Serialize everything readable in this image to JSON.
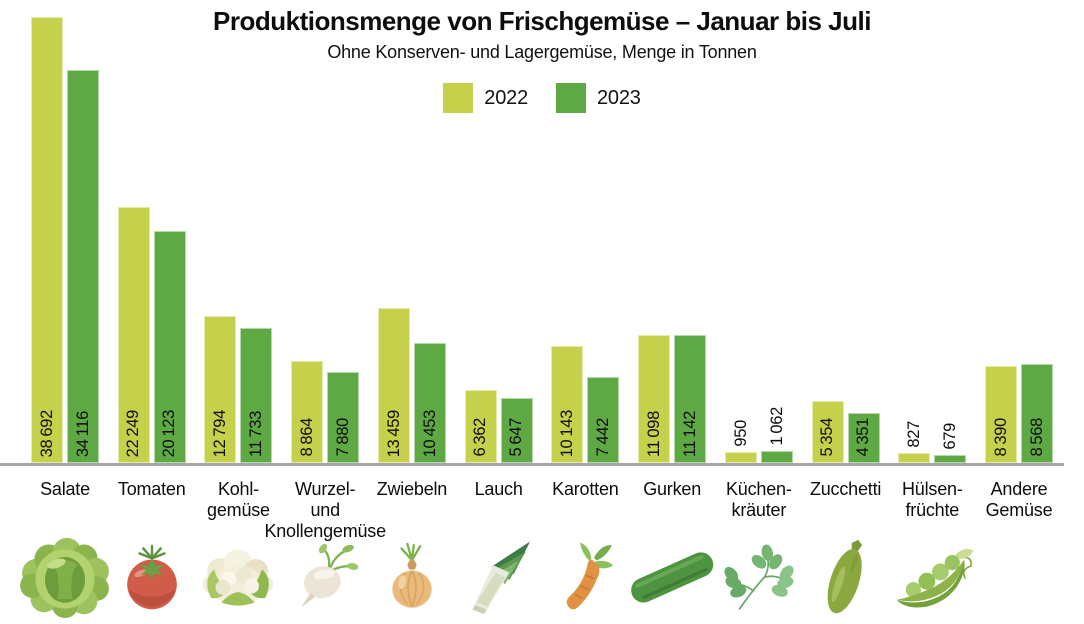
{
  "title": "Produktionsmenge von Frischgemüse – Januar bis Juli",
  "subtitle": "Ohne Konserven- und Lagergemüse, Menge in Tonnen",
  "legend": {
    "items": [
      {
        "label": "2022",
        "color": "#c5d14b"
      },
      {
        "label": "2023",
        "color": "#5fa944"
      }
    ]
  },
  "chart_data": {
    "type": "bar",
    "title": "Produktionsmenge von Frischgemüse – Januar bis Juli",
    "subtitle": "Ohne Konserven- und Lagergemüse, Menge in Tonnen",
    "unit": "Tonnen",
    "grid": false,
    "legend_position": "top-center",
    "value_labels": "rotated-90-at-bar-base, above bar when bar too short",
    "ylim": [
      0,
      38692
    ],
    "categories": [
      {
        "label_lines": [
          "Salate"
        ],
        "icon": "lettuce"
      },
      {
        "label_lines": [
          "Tomaten"
        ],
        "icon": "tomato"
      },
      {
        "label_lines": [
          "Kohl-",
          "gemüse"
        ],
        "icon": "cauliflower"
      },
      {
        "label_lines": [
          "Wurzel-",
          "und",
          "Knollengemüse"
        ],
        "icon": "turnip"
      },
      {
        "label_lines": [
          "Zwiebeln"
        ],
        "icon": "onion"
      },
      {
        "label_lines": [
          "Lauch"
        ],
        "icon": "leek"
      },
      {
        "label_lines": [
          "Karotten"
        ],
        "icon": "carrot"
      },
      {
        "label_lines": [
          "Gurken"
        ],
        "icon": "cucumber"
      },
      {
        "label_lines": [
          "Küchen-",
          "kräuter"
        ],
        "icon": "herbs"
      },
      {
        "label_lines": [
          "Zucchetti"
        ],
        "icon": "zucchini"
      },
      {
        "label_lines": [
          "Hülsen-",
          "früchte"
        ],
        "icon": "peas"
      },
      {
        "label_lines": [
          "Andere",
          "Gemüse"
        ],
        "icon": null
      }
    ],
    "series": [
      {
        "name": "2022",
        "color": "#c5d14b",
        "values": [
          38692,
          22249,
          12794,
          8864,
          13459,
          6362,
          10143,
          11098,
          950,
          5354,
          827,
          8390
        ]
      },
      {
        "name": "2023",
        "color": "#5fa944",
        "values": [
          34116,
          20123,
          11733,
          7880,
          10453,
          5647,
          7442,
          11142,
          1062,
          4351,
          679,
          8568
        ]
      }
    ]
  },
  "colors": {
    "axis": "#a6a6a6",
    "text": "#0d0d0d"
  }
}
